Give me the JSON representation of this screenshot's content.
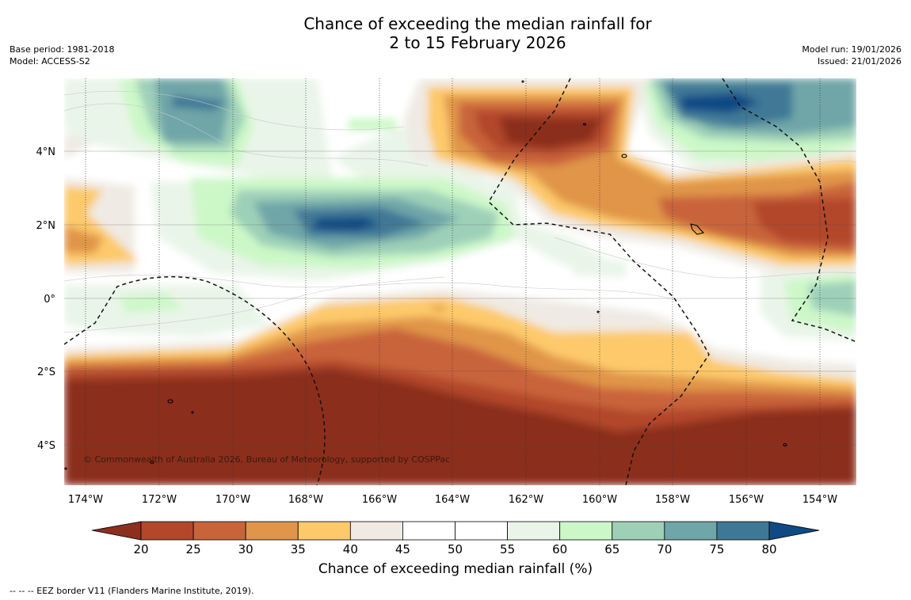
{
  "title": {
    "line1": "Chance of exceeding the median rainfall for",
    "line2": "2 to 15 February 2026"
  },
  "meta_left": {
    "base_period": "Base period: 1981-2018",
    "model": "Model: ACCESS-S2"
  },
  "meta_right": {
    "model_run": "Model run: 19/01/2026",
    "issued": "Issued: 21/01/2026"
  },
  "map": {
    "lat_labels": [
      "4°N",
      "2°N",
      "0°",
      "2°S",
      "4°S"
    ],
    "lon_labels": [
      "174°W",
      "172°W",
      "170°W",
      "168°W",
      "166°W",
      "164°W",
      "162°W",
      "160°W",
      "158°W",
      "156°W",
      "154°W"
    ],
    "copyright": "© Commonwealth of Australia 2026, Bureau of Meteorology, supported by COSPPac"
  },
  "colorbar": {
    "ticks": [
      "20",
      "25",
      "30",
      "35",
      "40",
      "45",
      "50",
      "55",
      "60",
      "65",
      "70",
      "75",
      "80"
    ],
    "colors": [
      "#8b2f1f",
      "#b2472a",
      "#c9643a",
      "#e0954a",
      "#fdc96a",
      "#efeae3",
      "#ffffff",
      "#ffffff",
      "#e9f5e8",
      "#ccf8c8",
      "#9ed0b8",
      "#6fa6a8",
      "#3f7896",
      "#0f4a84"
    ],
    "title": "Chance of exceeding median rainfall (%)"
  },
  "footer": "--  --  -- EEZ border V11 (Flanders Marine Institute, 2019)."
}
